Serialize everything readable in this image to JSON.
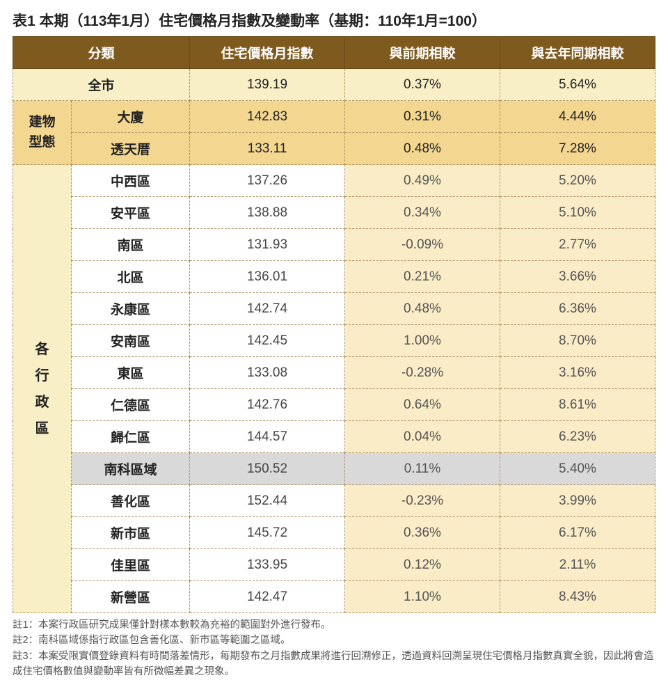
{
  "title": "表1 本期（113年1月）住宅價格月指數及變動率（基期：110年1月=100）",
  "header": {
    "category": "分類",
    "col1": "住宅價格月指數",
    "col2": "與前期相較",
    "col3": "與去年同期相較"
  },
  "cityLabel": "全市",
  "cityRow": {
    "v1": "139.19",
    "v2": "0.37%",
    "v3": "5.64%"
  },
  "buildingLabel1": "建物",
  "buildingLabel2": "型態",
  "buildingRows": [
    {
      "name": "大廈",
      "v1": "142.83",
      "v2": "0.31%",
      "v3": "4.44%"
    },
    {
      "name": "透天厝",
      "v1": "133.11",
      "v2": "0.48%",
      "v3": "7.28%"
    }
  ],
  "districtLabel": "各行政區",
  "districtRows": [
    {
      "name": "中西區",
      "v1": "137.26",
      "v2": "0.49%",
      "v3": "5.20%"
    },
    {
      "name": "安平區",
      "v1": "138.88",
      "v2": "0.34%",
      "v3": "5.10%"
    },
    {
      "name": "南區",
      "v1": "131.93",
      "v2": "-0.09%",
      "v3": "2.77%"
    },
    {
      "name": "北區",
      "v1": "136.01",
      "v2": "0.21%",
      "v3": "3.66%"
    },
    {
      "name": "永康區",
      "v1": "142.74",
      "v2": "0.48%",
      "v3": "6.36%"
    },
    {
      "name": "安南區",
      "v1": "142.45",
      "v2": "1.00%",
      "v3": "8.70%"
    },
    {
      "name": "東區",
      "v1": "133.08",
      "v2": "-0.28%",
      "v3": "3.16%"
    },
    {
      "name": "仁德區",
      "v1": "142.76",
      "v2": "0.64%",
      "v3": "8.61%"
    },
    {
      "name": "歸仁區",
      "v1": "144.57",
      "v2": "0.04%",
      "v3": "6.23%"
    },
    {
      "name": "南科區域",
      "v1": "150.52",
      "v2": "0.11%",
      "v3": "5.40%",
      "hl": true
    },
    {
      "name": "善化區",
      "v1": "152.44",
      "v2": "-0.23%",
      "v3": "3.99%"
    },
    {
      "name": "新市區",
      "v1": "145.72",
      "v2": "0.36%",
      "v3": "6.17%"
    },
    {
      "name": "佳里區",
      "v1": "133.95",
      "v2": "0.12%",
      "v3": "2.11%"
    },
    {
      "name": "新營區",
      "v1": "142.47",
      "v2": "1.10%",
      "v3": "8.43%"
    }
  ],
  "notes": {
    "n1": "註1：本案行政區研究成果僅針對樣本數較為充裕的範圍對外進行發布。",
    "n2": "註2：南科區域係指行政區包含善化區、新市區等範圍之區域。",
    "n3": "註3：本案受限實價登錄資料有時間落差情形，每期發布之月指數成果將進行回溯修正，透過資料回溯呈現住宅價格月指數真實全貌，因此將會造成住宅價格數值與變動率皆有所微幅差異之現象。"
  },
  "colors": {
    "headerBg": "#7f5a1f",
    "headerText": "#ffffff",
    "cityBg": "#f9efc6",
    "buildingBg": "#f3d68f",
    "nameBg": "#ffffff",
    "valBg": "#faecc7",
    "hlBg": "#d9d9d9",
    "border": "#b09060"
  }
}
